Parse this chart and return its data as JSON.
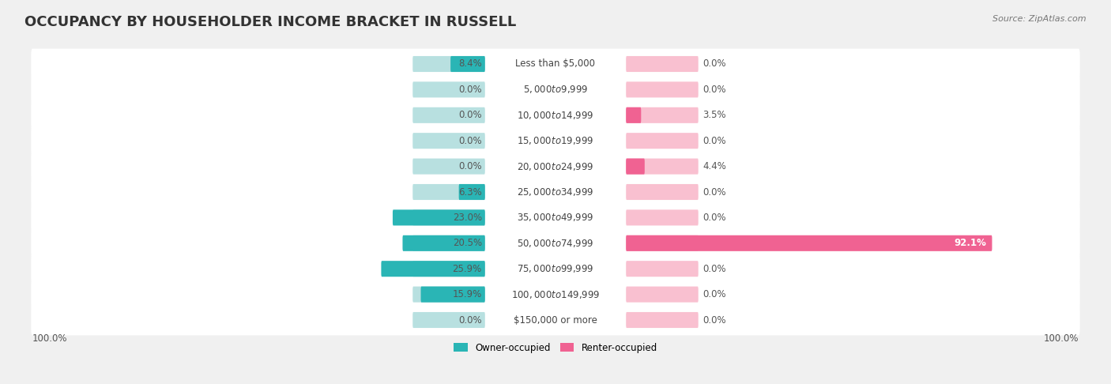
{
  "title": "OCCUPANCY BY HOUSEHOLDER INCOME BRACKET IN RUSSELL",
  "source": "Source: ZipAtlas.com",
  "categories": [
    "Less than $5,000",
    "$5,000 to $9,999",
    "$10,000 to $14,999",
    "$15,000 to $19,999",
    "$20,000 to $24,999",
    "$25,000 to $34,999",
    "$35,000 to $49,999",
    "$50,000 to $74,999",
    "$75,000 to $99,999",
    "$100,000 to $149,999",
    "$150,000 or more"
  ],
  "owner_values": [
    8.4,
    0.0,
    0.0,
    0.0,
    0.0,
    6.3,
    23.0,
    20.5,
    25.9,
    15.9,
    0.0
  ],
  "renter_values": [
    0.0,
    0.0,
    3.5,
    0.0,
    4.4,
    0.0,
    0.0,
    92.1,
    0.0,
    0.0,
    0.0
  ],
  "owner_color_dark": "#2ab5b5",
  "owner_color_light": "#b8e0e0",
  "renter_color_dark": "#f06292",
  "renter_color_light": "#f9c0d0",
  "bg_color": "#f0f0f0",
  "axis_left_label": "100.0%",
  "axis_right_label": "100.0%",
  "legend_owner": "Owner-occupied",
  "legend_renter": "Renter-occupied",
  "title_fontsize": 13,
  "label_fontsize": 8.5,
  "category_fontsize": 8.5,
  "source_fontsize": 8
}
